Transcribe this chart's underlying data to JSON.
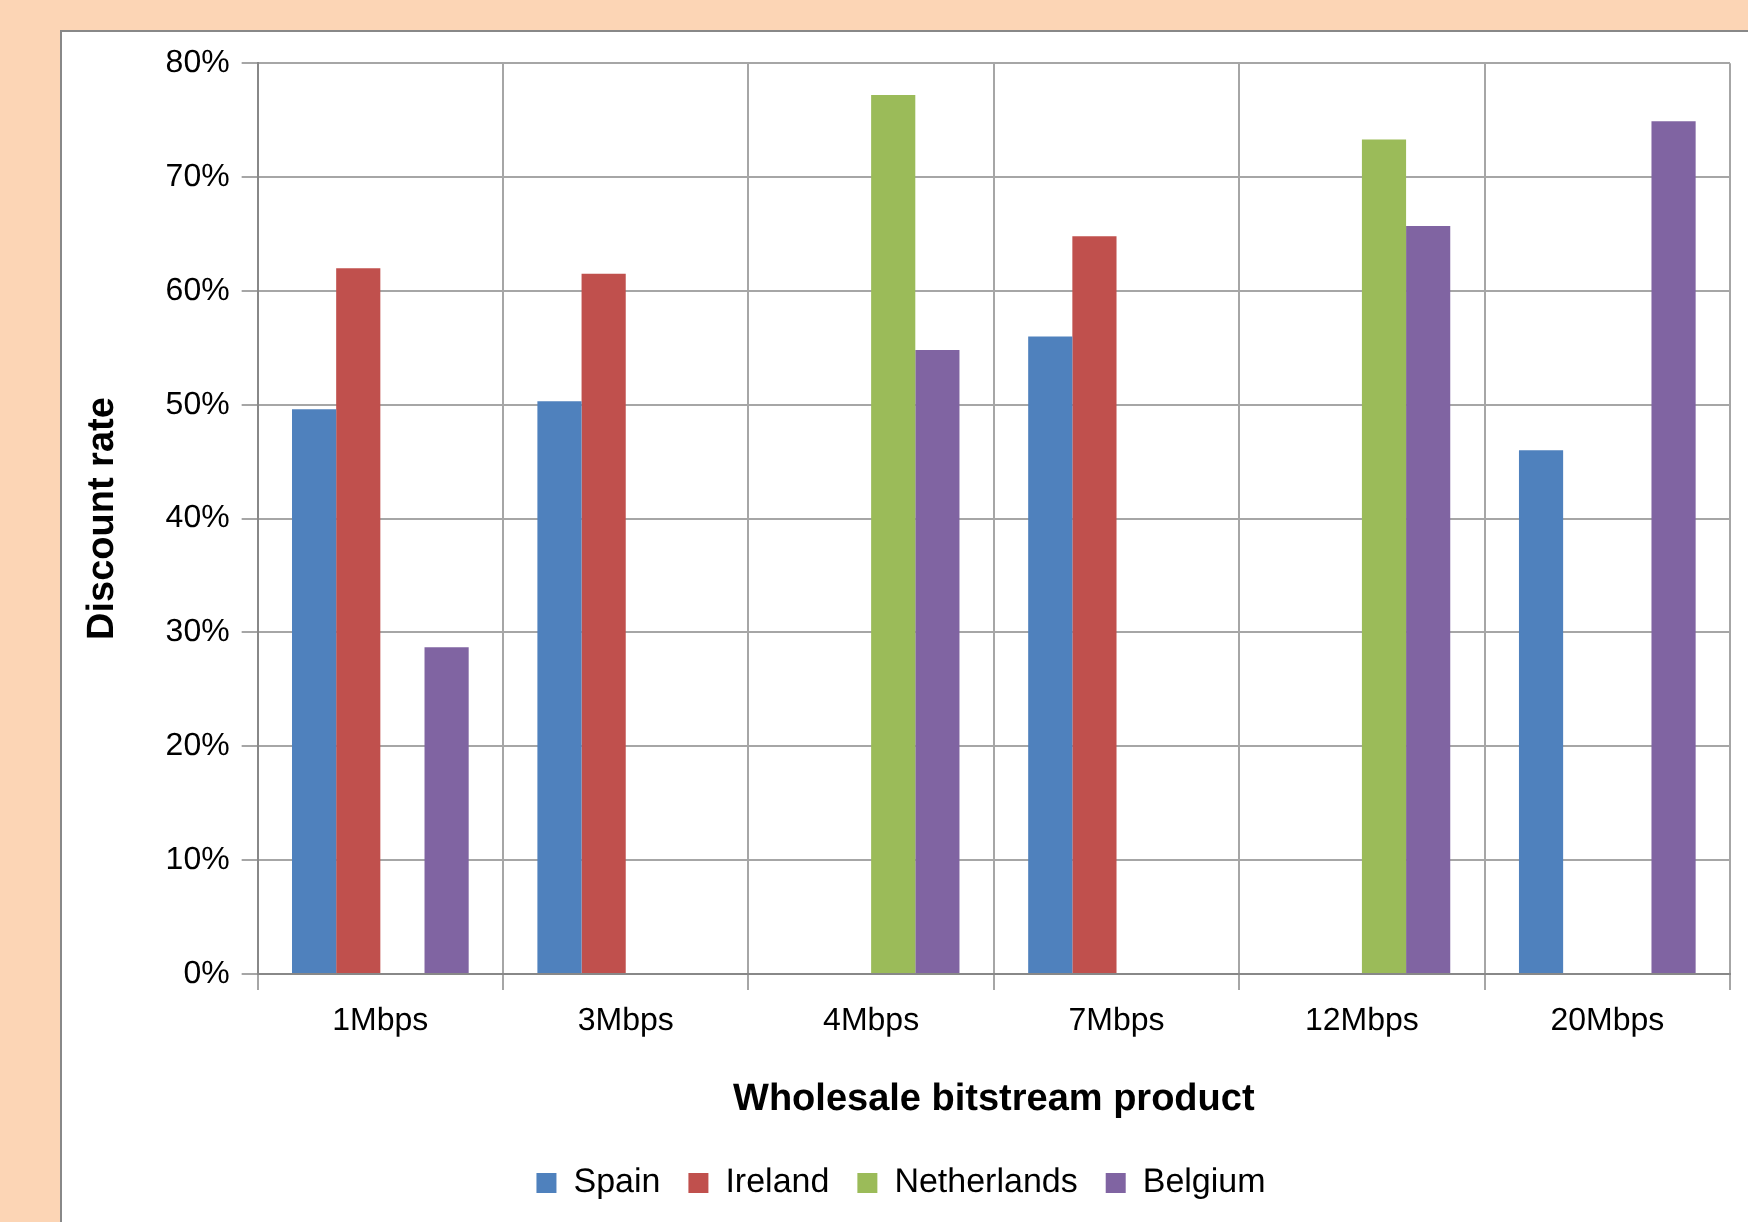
{
  "chart_data": {
    "type": "bar",
    "xlabel": "Wholesale bitstream product",
    "ylabel": "Discount rate",
    "categories": [
      "1Mbps",
      "3Mbps",
      "4Mbps",
      "7Mbps",
      "12Mbps",
      "20Mbps"
    ],
    "series": [
      {
        "name": "Spain",
        "color": "#4f81bd",
        "values": [
          49.6,
          50.3,
          null,
          56.0,
          null,
          46.0
        ]
      },
      {
        "name": "Ireland",
        "color": "#c0504d",
        "values": [
          62.0,
          61.5,
          null,
          64.8,
          null,
          null
        ]
      },
      {
        "name": "Netherlands",
        "color": "#9bbb59",
        "values": [
          null,
          null,
          77.2,
          null,
          73.3,
          null
        ]
      },
      {
        "name": "Belgium",
        "color": "#8064a2",
        "values": [
          28.7,
          null,
          54.8,
          null,
          65.7,
          74.9
        ]
      }
    ],
    "ylim": [
      0,
      80
    ],
    "yticks": [
      {
        "value": 0,
        "label": "0%"
      },
      {
        "value": 10,
        "label": "10%"
      },
      {
        "value": 20,
        "label": "20%"
      },
      {
        "value": 30,
        "label": "30%"
      },
      {
        "value": 40,
        "label": "40%"
      },
      {
        "value": 50,
        "label": "50%"
      },
      {
        "value": 60,
        "label": "60%"
      },
      {
        "value": 70,
        "label": "70%"
      },
      {
        "value": 80,
        "label": "80%"
      }
    ],
    "grid": true,
    "legend": "bottom"
  }
}
